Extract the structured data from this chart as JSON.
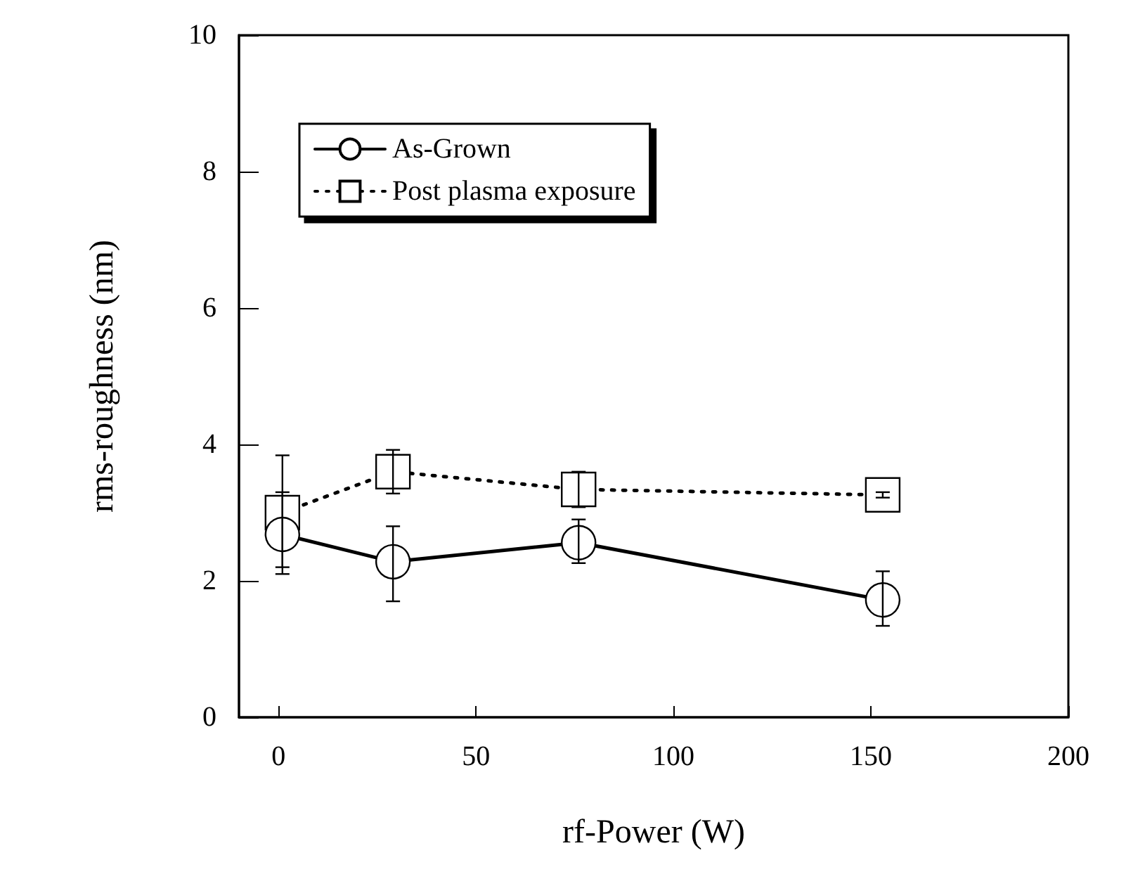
{
  "chart_data": {
    "type": "line",
    "xlabel": "rf-Power (W)",
    "ylabel": "rms-roughness (nm)",
    "xlim": [
      -10,
      200
    ],
    "xticks": [
      0,
      50,
      100,
      150,
      200
    ],
    "ylim": [
      0,
      10
    ],
    "yticks": [
      0,
      2,
      4,
      6,
      8,
      10
    ],
    "grid": false,
    "legend": "top left",
    "series": [
      {
        "name": "As-Grown",
        "color": "#000000",
        "marker": "circle",
        "line_style": "solid",
        "x": [
          1,
          29,
          76,
          153
        ],
        "values": [
          2.68,
          2.28,
          2.56,
          1.72
        ],
        "errors": [
          [
            2.2,
            3.3
          ],
          [
            1.7,
            2.8
          ],
          [
            2.26,
            2.9
          ],
          [
            1.34,
            2.14
          ]
        ]
      },
      {
        "name": "Post plasma exposure",
        "color": "#000000",
        "marker": "square",
        "line_style": "dotted",
        "x": [
          1,
          29,
          76,
          153
        ],
        "values": [
          3.0,
          3.6,
          3.34,
          3.26
        ],
        "errors": [
          [
            2.1,
            3.84
          ],
          [
            3.28,
            3.92
          ],
          [
            3.08,
            3.6
          ],
          [
            3.22,
            3.3
          ]
        ]
      }
    ]
  }
}
